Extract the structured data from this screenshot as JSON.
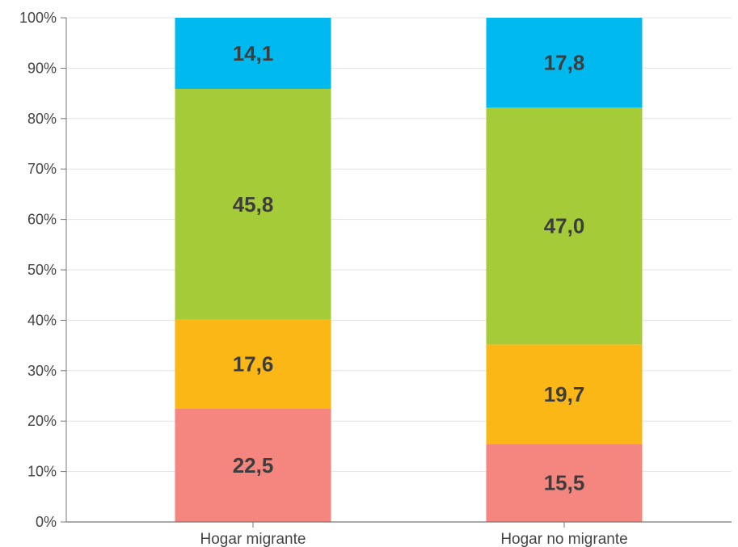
{
  "chart_data": {
    "type": "bar",
    "stacked": true,
    "categories": [
      "Hogar migrante",
      "Hogar no migrante"
    ],
    "series": [
      {
        "values": [
          22.5,
          15.5
        ],
        "labels": [
          "22,5",
          "15,5"
        ],
        "color": "#f4857f"
      },
      {
        "values": [
          17.6,
          19.7
        ],
        "labels": [
          "17,6",
          "19,7"
        ],
        "color": "#fbb715"
      },
      {
        "values": [
          45.8,
          47.0
        ],
        "labels": [
          "45,8",
          "47,0"
        ],
        "color": "#a5cc38"
      },
      {
        "values": [
          14.1,
          17.8
        ],
        "labels": [
          "14,1",
          "17,8"
        ],
        "color": "#00b9ef"
      }
    ],
    "yticks": [
      "0%",
      "10%",
      "20%",
      "30%",
      "40%",
      "50%",
      "60%",
      "70%",
      "80%",
      "90%",
      "100%"
    ],
    "ylim": [
      0,
      100
    ],
    "grid": true,
    "legend": "none",
    "title": "",
    "xlabel": "",
    "ylabel": ""
  }
}
